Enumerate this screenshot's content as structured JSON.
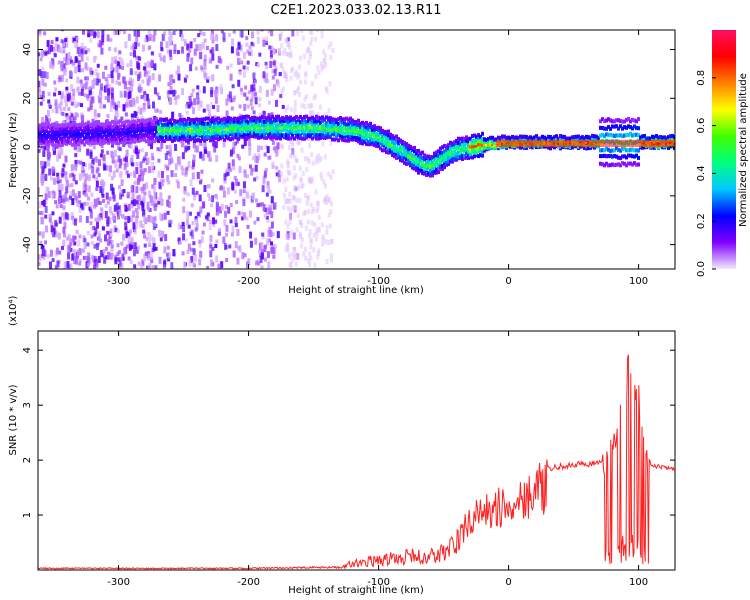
{
  "title": "C2E1.2023.033.02.13.R11",
  "chart_data": [
    {
      "type": "heatmap",
      "xlabel": "Height of straight line (km)",
      "ylabel": "Frequency (Hz)",
      "xlim": [
        -362,
        128
      ],
      "ylim": [
        -50,
        48
      ],
      "xticks": [
        -300,
        -200,
        -100,
        0,
        100
      ],
      "yticks": [
        -40,
        -20,
        0,
        20,
        40
      ],
      "colorbar": {
        "label": "Normalized spectral amplitude",
        "range": [
          0,
          1
        ],
        "ticks": [
          0.0,
          0.2,
          0.4,
          0.6,
          0.8
        ],
        "colors": [
          "#f2e8ff",
          "#8000ff",
          "#0000ff",
          "#00c8ff",
          "#00ff80",
          "#40ff00",
          "#ffff00",
          "#ff8000",
          "#ff0000",
          "#ff1060"
        ]
      },
      "ridge": {
        "x": [
          -362,
          -300,
          -270,
          -240,
          -200,
          -175,
          -150,
          -120,
          -100,
          -80,
          -70,
          -60,
          -50,
          -40,
          -30,
          -20,
          0,
          20,
          50,
          80,
          100,
          128
        ],
        "y": [
          5,
          6,
          7,
          7,
          8,
          8,
          8,
          7,
          4,
          -2,
          -6,
          -8,
          -4,
          -1,
          0,
          1,
          2,
          2,
          2,
          2,
          2,
          2
        ]
      }
    },
    {
      "type": "line",
      "xlabel": "Height of straight line (km)",
      "ylabel": "SNR (10 * v/v)",
      "y_multiplier": "(x10⁴)",
      "xlim": [
        -362,
        128
      ],
      "ylim": [
        0,
        4.35
      ],
      "xticks": [
        -300,
        -200,
        -100,
        0,
        100
      ],
      "yticks": [
        1,
        2,
        3,
        4
      ],
      "color": "#ff2020",
      "envelope": {
        "x": [
          -362,
          -200,
          -130,
          -120,
          -100,
          -80,
          -60,
          -50,
          -40,
          -30,
          -20,
          -10,
          0,
          10,
          20,
          30,
          40,
          50,
          60,
          72,
          75,
          80,
          90,
          95,
          100,
          105,
          110,
          128
        ],
        "y": [
          0.03,
          0.03,
          0.05,
          0.15,
          0.22,
          0.3,
          0.3,
          0.4,
          0.6,
          1.1,
          1.25,
          1.35,
          1.4,
          1.6,
          1.75,
          1.85,
          1.9,
          1.93,
          1.95,
          1.95,
          2.0,
          2.2,
          3.2,
          4.0,
          3.0,
          2.2,
          1.9,
          1.85
        ]
      }
    }
  ]
}
